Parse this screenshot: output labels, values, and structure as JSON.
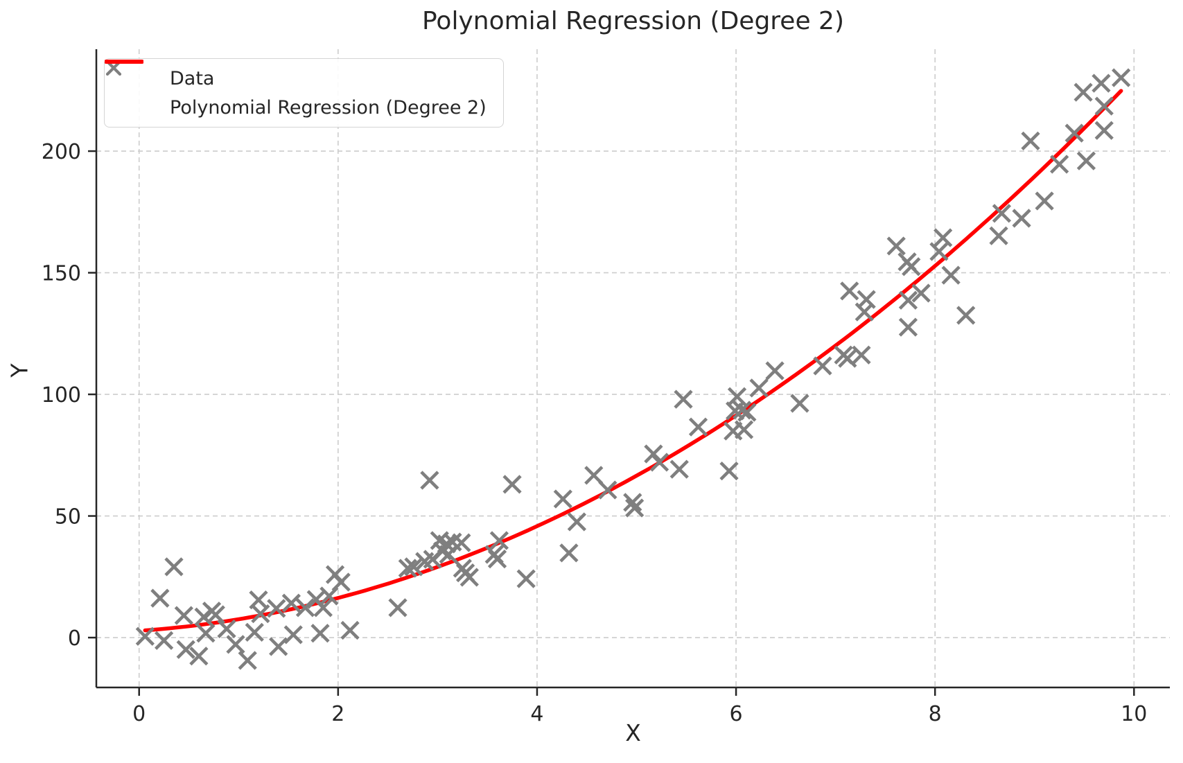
{
  "chart_data": {
    "type": "scatter",
    "title": "Polynomial Regression (Degree 2)",
    "xlabel": "X",
    "ylabel": "Y",
    "xlim": [
      -0.43,
      10.36
    ],
    "ylim": [
      -20.5,
      241.9
    ],
    "xticks": [
      0,
      2,
      4,
      6,
      8,
      10
    ],
    "yticks": [
      0,
      50,
      100,
      150,
      200
    ],
    "grid": true,
    "grid_style": "dashed",
    "legend_position": "upper-left",
    "colors": {
      "marker": "#7f7f7f",
      "regression_line": "#ff0000",
      "grid": "#cccccc",
      "axis": "#262626"
    },
    "legend": {
      "entries": [
        {
          "label": "Data",
          "type": "marker-x",
          "color": "#7f7f7f"
        },
        {
          "label": "Polynomial Regression (Degree 2)",
          "type": "line",
          "color": "#ff0000"
        }
      ]
    },
    "series": [
      {
        "name": "Data",
        "type": "scatter",
        "marker": "x",
        "color": "#7f7f7f",
        "points": [
          [
            0.06,
            0.5
          ],
          [
            0.21,
            16.2
          ],
          [
            0.25,
            -1.2
          ],
          [
            0.35,
            29.1
          ],
          [
            0.45,
            9.1
          ],
          [
            0.47,
            -4.9
          ],
          [
            0.6,
            -7.6
          ],
          [
            0.65,
            8.5
          ],
          [
            0.67,
            1.8
          ],
          [
            0.73,
            10.9
          ],
          [
            0.77,
            9.4
          ],
          [
            0.88,
            3.6
          ],
          [
            0.97,
            -2.8
          ],
          [
            1.09,
            -9.4
          ],
          [
            1.16,
            2.2
          ],
          [
            1.2,
            15.5
          ],
          [
            1.22,
            9.8
          ],
          [
            1.38,
            12.0
          ],
          [
            1.4,
            -3.7
          ],
          [
            1.53,
            14.2
          ],
          [
            1.55,
            1.2
          ],
          [
            1.67,
            12.3
          ],
          [
            1.78,
            15.7
          ],
          [
            1.82,
            1.8
          ],
          [
            1.85,
            12.3
          ],
          [
            1.91,
            17.1
          ],
          [
            1.97,
            25.9
          ],
          [
            2.03,
            22.8
          ],
          [
            2.12,
            3.0
          ],
          [
            2.6,
            12.3
          ],
          [
            2.7,
            28.5
          ],
          [
            2.76,
            29.1
          ],
          [
            2.87,
            31.3
          ],
          [
            2.92,
            64.7
          ],
          [
            2.95,
            32.2
          ],
          [
            3.02,
            39.9
          ],
          [
            3.05,
            35.6
          ],
          [
            3.09,
            38.5
          ],
          [
            3.11,
            34.2
          ],
          [
            3.15,
            39.3
          ],
          [
            3.24,
            39.0
          ],
          [
            3.25,
            28.5
          ],
          [
            3.28,
            26.6
          ],
          [
            3.32,
            24.8
          ],
          [
            3.57,
            34.2
          ],
          [
            3.6,
            32.3
          ],
          [
            3.62,
            39.9
          ],
          [
            3.75,
            63.0
          ],
          [
            3.89,
            24.2
          ],
          [
            4.26,
            57.0
          ],
          [
            4.32,
            34.8
          ],
          [
            4.4,
            47.6
          ],
          [
            4.57,
            66.7
          ],
          [
            4.71,
            60.7
          ],
          [
            4.96,
            55.6
          ],
          [
            4.98,
            53.3
          ],
          [
            5.17,
            75.5
          ],
          [
            5.23,
            72.1
          ],
          [
            5.43,
            69.2
          ],
          [
            5.47,
            98.0
          ],
          [
            5.62,
            86.6
          ],
          [
            5.93,
            68.5
          ],
          [
            5.97,
            84.9
          ],
          [
            5.99,
            93.2
          ],
          [
            6.01,
            99.1
          ],
          [
            6.06,
            93.5
          ],
          [
            6.08,
            85.5
          ],
          [
            6.11,
            92.6
          ],
          [
            6.23,
            102.6
          ],
          [
            6.39,
            109.7
          ],
          [
            6.64,
            96.3
          ],
          [
            6.87,
            111.7
          ],
          [
            7.08,
            116.2
          ],
          [
            7.12,
            114.8
          ],
          [
            7.14,
            142.5
          ],
          [
            7.26,
            116.2
          ],
          [
            7.29,
            133.9
          ],
          [
            7.31,
            139.0
          ],
          [
            7.61,
            161.0
          ],
          [
            7.72,
            154.5
          ],
          [
            7.73,
            138.7
          ],
          [
            7.73,
            127.6
          ],
          [
            7.76,
            152.5
          ],
          [
            7.86,
            141.6
          ],
          [
            8.04,
            158.7
          ],
          [
            8.08,
            164.4
          ],
          [
            8.16,
            149.0
          ],
          [
            8.31,
            132.5
          ],
          [
            8.64,
            165.2
          ],
          [
            8.67,
            174.4
          ],
          [
            8.87,
            172.4
          ],
          [
            8.96,
            204.2
          ],
          [
            9.1,
            179.5
          ],
          [
            9.25,
            194.6
          ],
          [
            9.4,
            207.4
          ],
          [
            9.49,
            224.2
          ],
          [
            9.52,
            196.0
          ],
          [
            9.67,
            227.9
          ],
          [
            9.7,
            218.5
          ],
          [
            9.7,
            208.5
          ],
          [
            9.87,
            230.2
          ]
        ]
      },
      {
        "name": "Polynomial Regression (Degree 2)",
        "type": "line",
        "color": "#ff0000",
        "regression": {
          "degree": 2,
          "coefficients": [
            2.8,
            2.75,
            2.0
          ]
        },
        "x_range": [
          0.06,
          9.87
        ]
      }
    ]
  }
}
